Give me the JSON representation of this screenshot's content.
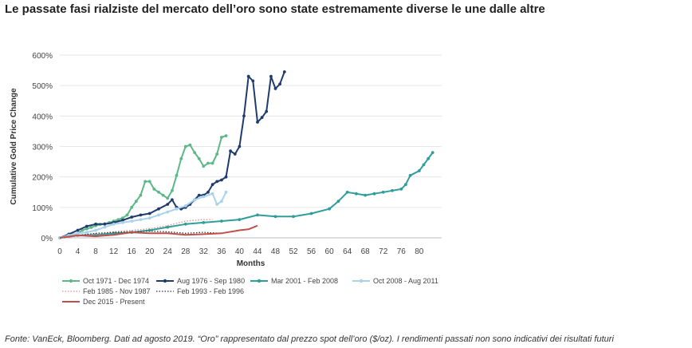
{
  "headline": "Le passate fasi rialziste del mercato dell’oro sono state estremamente diverse le une dalle altre",
  "footnote": "Fonte: VanEck, Bloomberg. Dati ad agosto 2019. “Oro” rappresentato dal prezzo spot dell’oro ($/oz). I rendimenti passati non sono indicativi dei risultati futuri",
  "chart_data": {
    "type": "line",
    "title": "",
    "xlabel": "Months",
    "ylabel": "Cumulative Gold Price Change",
    "xlim": [
      0,
      85
    ],
    "ylim": [
      0,
      600
    ],
    "x_ticks": [
      0,
      4,
      8,
      12,
      16,
      20,
      24,
      28,
      32,
      36,
      40,
      44,
      48,
      52,
      56,
      60,
      64,
      68,
      72,
      76,
      80
    ],
    "y_ticks": [
      0,
      100,
      200,
      300,
      400,
      500,
      600
    ],
    "y_tick_labels": [
      "0%",
      "100%",
      "200%",
      "300%",
      "400%",
      "500%",
      "600%"
    ],
    "grid": "horizontal",
    "legend_position": "bottom",
    "series": [
      {
        "name": "Oct 1971 - Dec 1974",
        "color": "#5cb887",
        "style": "solid-markers",
        "values": [
          [
            0,
            0
          ],
          [
            1,
            3
          ],
          [
            2,
            5
          ],
          [
            3,
            10
          ],
          [
            4,
            15
          ],
          [
            5,
            25
          ],
          [
            6,
            30
          ],
          [
            7,
            34
          ],
          [
            8,
            40
          ],
          [
            9,
            44
          ],
          [
            10,
            46
          ],
          [
            11,
            50
          ],
          [
            12,
            55
          ],
          [
            13,
            60
          ],
          [
            14,
            65
          ],
          [
            15,
            75
          ],
          [
            16,
            100
          ],
          [
            17,
            120
          ],
          [
            18,
            140
          ],
          [
            19,
            185
          ],
          [
            20,
            185
          ],
          [
            21,
            160
          ],
          [
            22,
            150
          ],
          [
            23,
            140
          ],
          [
            24,
            130
          ],
          [
            25,
            155
          ],
          [
            26,
            205
          ],
          [
            27,
            260
          ],
          [
            28,
            300
          ],
          [
            29,
            305
          ],
          [
            30,
            280
          ],
          [
            31,
            260
          ],
          [
            32,
            235
          ],
          [
            33,
            245
          ],
          [
            34,
            245
          ],
          [
            35,
            275
          ],
          [
            36,
            330
          ],
          [
            37,
            335
          ]
        ]
      },
      {
        "name": "Aug 1976 - Sep 1980",
        "color": "#1f3b6e",
        "style": "solid-markers",
        "values": [
          [
            0,
            0
          ],
          [
            2,
            12
          ],
          [
            4,
            25
          ],
          [
            6,
            38
          ],
          [
            8,
            45
          ],
          [
            10,
            45
          ],
          [
            12,
            50
          ],
          [
            14,
            58
          ],
          [
            16,
            68
          ],
          [
            18,
            75
          ],
          [
            20,
            80
          ],
          [
            22,
            95
          ],
          [
            24,
            110
          ],
          [
            25,
            125
          ],
          [
            26,
            100
          ],
          [
            27,
            95
          ],
          [
            28,
            100
          ],
          [
            29,
            110
          ],
          [
            30,
            125
          ],
          [
            31,
            140
          ],
          [
            32,
            140
          ],
          [
            33,
            150
          ],
          [
            34,
            175
          ],
          [
            35,
            185
          ],
          [
            36,
            190
          ],
          [
            37,
            200
          ],
          [
            38,
            285
          ],
          [
            39,
            275
          ],
          [
            40,
            300
          ],
          [
            41,
            400
          ],
          [
            42,
            530
          ],
          [
            43,
            515
          ],
          [
            44,
            380
          ],
          [
            45,
            395
          ],
          [
            46,
            415
          ],
          [
            47,
            530
          ],
          [
            48,
            490
          ],
          [
            49,
            505
          ],
          [
            50,
            545
          ]
        ]
      },
      {
        "name": "Mar 2001 - Feb 2008",
        "color": "#2f9e9b",
        "style": "solid-markers",
        "values": [
          [
            0,
            0
          ],
          [
            4,
            8
          ],
          [
            8,
            10
          ],
          [
            12,
            15
          ],
          [
            16,
            18
          ],
          [
            20,
            25
          ],
          [
            24,
            35
          ],
          [
            28,
            45
          ],
          [
            32,
            50
          ],
          [
            36,
            55
          ],
          [
            40,
            60
          ],
          [
            44,
            75
          ],
          [
            48,
            70
          ],
          [
            52,
            70
          ],
          [
            56,
            80
          ],
          [
            60,
            95
          ],
          [
            62,
            120
          ],
          [
            64,
            150
          ],
          [
            66,
            145
          ],
          [
            68,
            140
          ],
          [
            70,
            145
          ],
          [
            72,
            150
          ],
          [
            74,
            155
          ],
          [
            76,
            160
          ],
          [
            77,
            175
          ],
          [
            78,
            205
          ],
          [
            80,
            220
          ],
          [
            81,
            240
          ],
          [
            82,
            260
          ],
          [
            83,
            280
          ]
        ]
      },
      {
        "name": "Oct 2008 - Aug 2011",
        "color": "#a9d2ec",
        "style": "solid-markers",
        "values": [
          [
            0,
            0
          ],
          [
            2,
            8
          ],
          [
            4,
            15
          ],
          [
            6,
            18
          ],
          [
            8,
            25
          ],
          [
            10,
            35
          ],
          [
            12,
            45
          ],
          [
            14,
            50
          ],
          [
            16,
            55
          ],
          [
            18,
            60
          ],
          [
            20,
            65
          ],
          [
            22,
            75
          ],
          [
            24,
            85
          ],
          [
            26,
            95
          ],
          [
            28,
            105
          ],
          [
            30,
            125
          ],
          [
            32,
            135
          ],
          [
            34,
            145
          ],
          [
            35,
            110
          ],
          [
            36,
            120
          ],
          [
            37,
            150
          ]
        ]
      },
      {
        "name": "Feb 1985 - Nov 1987",
        "color": "#e08a85",
        "style": "dotted",
        "values": [
          [
            0,
            0
          ],
          [
            4,
            5
          ],
          [
            8,
            12
          ],
          [
            12,
            20
          ],
          [
            16,
            25
          ],
          [
            20,
            30
          ],
          [
            24,
            40
          ],
          [
            28,
            55
          ],
          [
            32,
            60
          ],
          [
            34,
            60
          ]
        ]
      },
      {
        "name": "Feb 1993 - Feb 1996",
        "color": "#333333",
        "style": "dotted",
        "values": [
          [
            0,
            0
          ],
          [
            4,
            8
          ],
          [
            8,
            15
          ],
          [
            12,
            18
          ],
          [
            16,
            20
          ],
          [
            20,
            22
          ],
          [
            24,
            20
          ],
          [
            28,
            15
          ],
          [
            32,
            18
          ],
          [
            36,
            15
          ]
        ]
      },
      {
        "name": "Dec 2015 - Present",
        "color": "#c0504d",
        "style": "solid",
        "values": [
          [
            0,
            0
          ],
          [
            4,
            8
          ],
          [
            8,
            5
          ],
          [
            12,
            10
          ],
          [
            16,
            18
          ],
          [
            20,
            15
          ],
          [
            24,
            15
          ],
          [
            28,
            10
          ],
          [
            32,
            12
          ],
          [
            36,
            15
          ],
          [
            40,
            25
          ],
          [
            42,
            28
          ],
          [
            44,
            40
          ]
        ]
      }
    ]
  }
}
